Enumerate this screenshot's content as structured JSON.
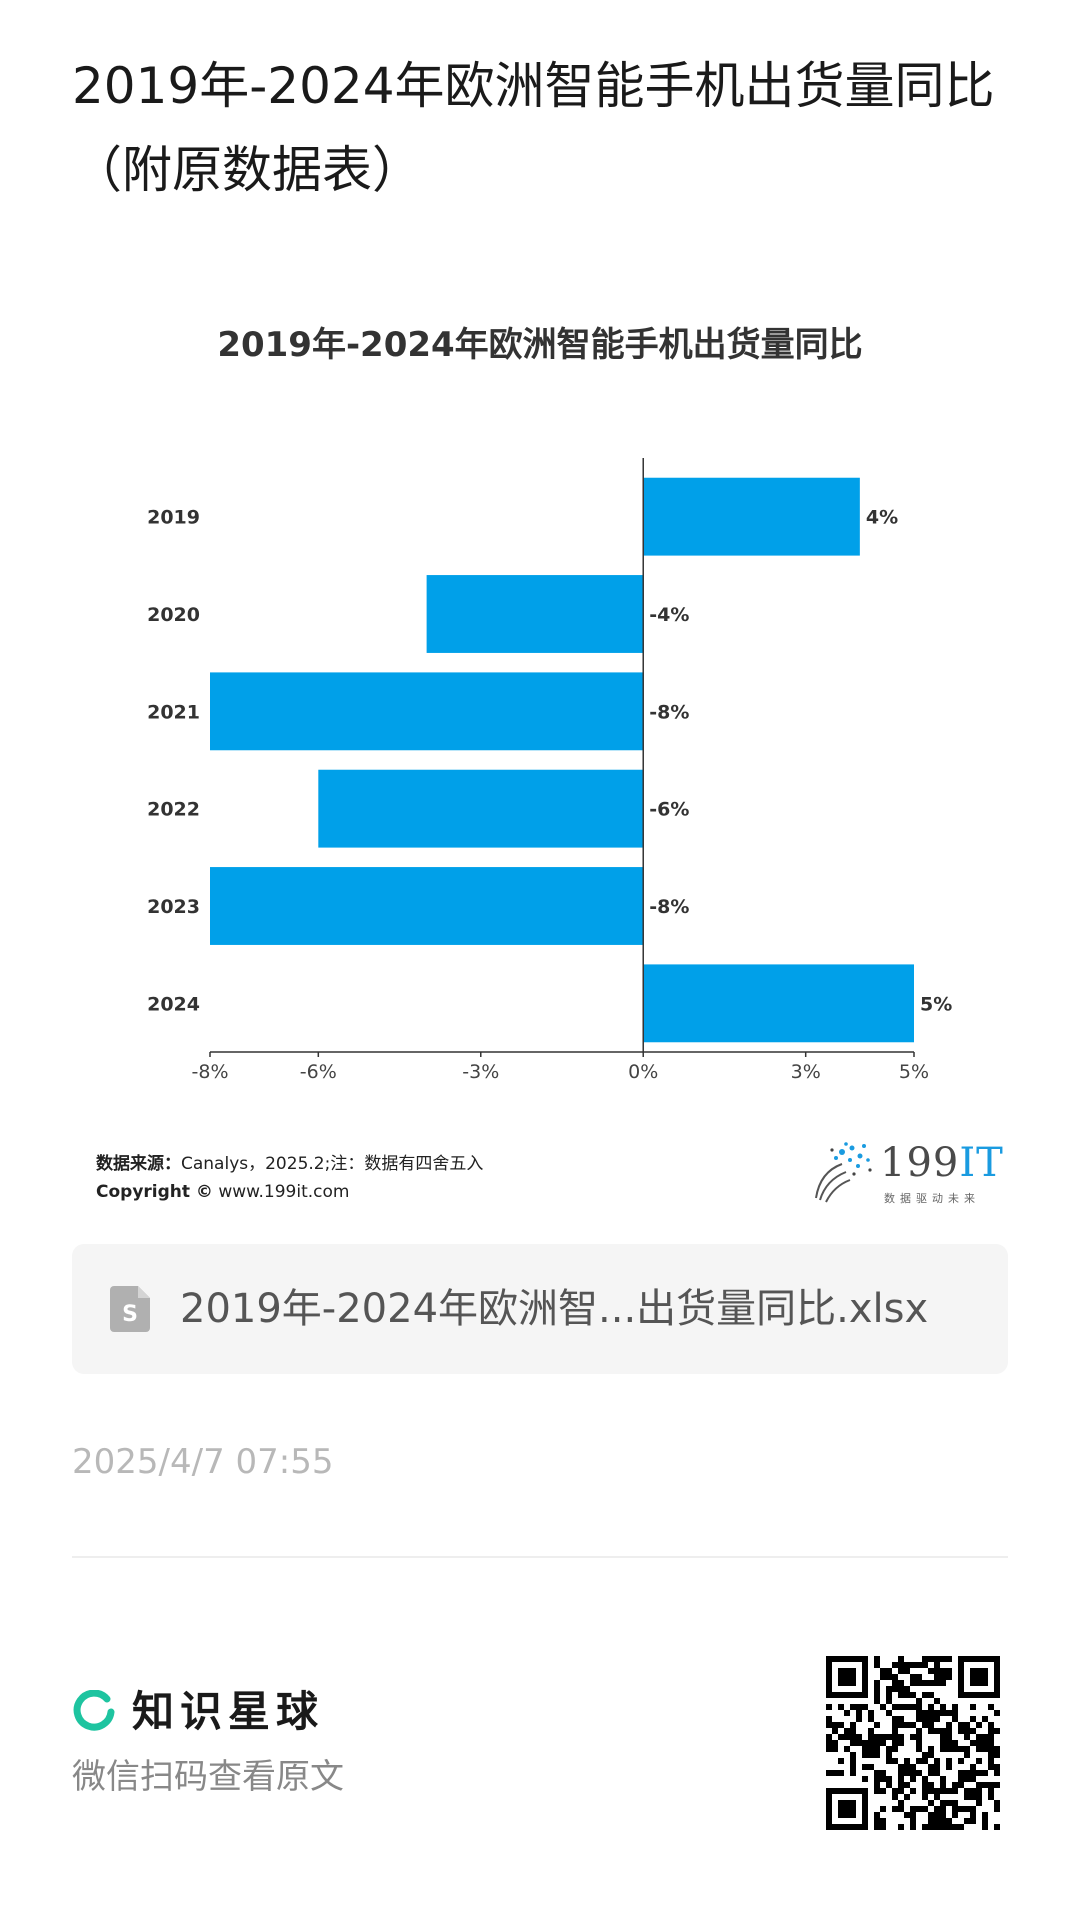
{
  "page": {
    "title": "2019年-2024年欧洲智能手机出货量同比（附原数据表）"
  },
  "chart_data": {
    "type": "bar",
    "orientation": "horizontal",
    "title": "2019年-2024年欧洲智能手机出货量同比",
    "categories": [
      "2019",
      "2020",
      "2021",
      "2022",
      "2023",
      "2024"
    ],
    "values": [
      4,
      -4,
      -8,
      -6,
      -8,
      5
    ],
    "data_labels": [
      "4%",
      "-4%",
      "-8%",
      "-6%",
      "-8%",
      "5%"
    ],
    "x_ticks": [
      "-8%",
      "-6%",
      "-3%",
      "0%",
      "3%",
      "5%"
    ],
    "x_tick_values": [
      -8,
      -6,
      -3,
      0,
      3,
      5
    ],
    "xlim": [
      -8,
      5
    ],
    "bar_color": "#00a0e9",
    "grid": false,
    "legend": "none"
  },
  "source": {
    "label": "数据来源：",
    "text": "Canalys，2025.2;注：数据有四舍五入",
    "copyright_label": "Copyright ©",
    "copyright_url": "www.199it.com"
  },
  "logo": {
    "name_digits": "199",
    "name_suffix": "IT",
    "tagline": "数据驱动未来"
  },
  "attachment": {
    "icon": "spreadsheet-file-icon",
    "filename": "2019年-2024年欧洲智...出货量同比.xlsx"
  },
  "timestamp": "2025/4/7 07:55",
  "footer": {
    "brand_icon": "zhishi-xingqiu-ring-icon",
    "brand_name": "知识星球",
    "brand_color": "#1ec4a0",
    "scan_hint": "微信扫码查看原文"
  }
}
